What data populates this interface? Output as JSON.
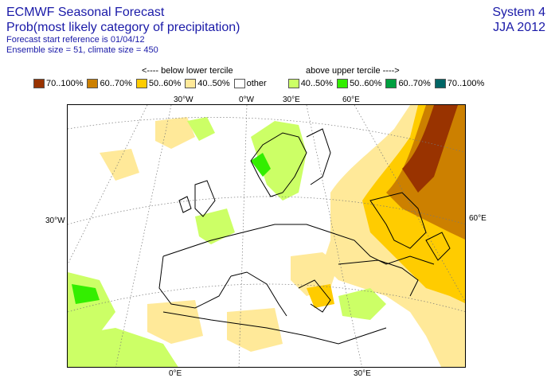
{
  "header": {
    "title": "ECMWF Seasonal Forecast",
    "subtitle": "Prob(most likely category of precipitation)",
    "forecast_ref": "Forecast start reference is 01/04/12",
    "ensemble": "Ensemble size = 51, climate size = 450",
    "system": "System 4",
    "season": "JJA 2012"
  },
  "legend": {
    "below_label": "<---- below lower tercile",
    "above_label": "above upper tercile ---->",
    "items": [
      {
        "label": "70..100%",
        "color": "#993300"
      },
      {
        "label": "60..70%",
        "color": "#cc8000"
      },
      {
        "label": "50..60%",
        "color": "#ffcc00"
      },
      {
        "label": "40..50%",
        "color": "#ffe999"
      },
      {
        "label": "other",
        "color": "#ffffff"
      },
      {
        "label": "40..50%",
        "color": "#ccff66"
      },
      {
        "label": "50..60%",
        "color": "#33ee00"
      },
      {
        "label": "60..70%",
        "color": "#00a040"
      },
      {
        "label": "70..100%",
        "color": "#006666"
      }
    ]
  },
  "map": {
    "coords_top": [
      "30°W",
      "0°W",
      "30°E",
      "60°E"
    ],
    "coords_left": [
      "30°W"
    ],
    "coords_right": [
      "60°E"
    ],
    "coords_bottom": [
      "0°E",
      "30°E"
    ]
  }
}
